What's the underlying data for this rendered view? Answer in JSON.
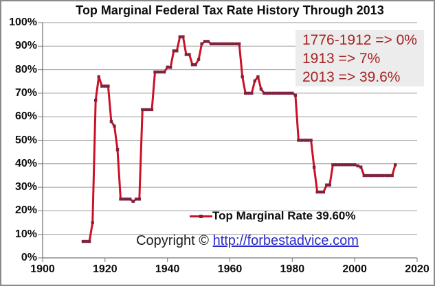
{
  "title": "Top Marginal Federal Tax Rate History Through 2013",
  "annotation": {
    "lines": [
      "1776-1912 => 0%",
      "1913 => 7%",
      "2013 => 39.6%"
    ]
  },
  "legend": {
    "label": "Top Marginal Rate 39.60%"
  },
  "copyright": {
    "prefix": "Copyright © ",
    "link": "http://forbestadvice.com"
  },
  "colors": {
    "line": "#cc1126",
    "marker": "#7d2340",
    "grid": "#989898",
    "axis": "#767676",
    "annotation_bg": "#ececec",
    "annotation_text": "#a62323",
    "link": "#2a2ac8"
  },
  "chart_data": {
    "type": "line",
    "title": "Top Marginal Federal Tax Rate History Through 2013",
    "xlabel": "",
    "ylabel": "",
    "xlim": [
      1900,
      2020
    ],
    "ylim": [
      0,
      100
    ],
    "x_ticks": [
      1900,
      1920,
      1940,
      1960,
      1980,
      2000,
      2020
    ],
    "y_ticks": [
      0,
      10,
      20,
      30,
      40,
      50,
      60,
      70,
      80,
      90,
      100
    ],
    "y_tick_suffix": "%",
    "grid": "horizontal",
    "legend_position": "inside-bottom-center",
    "series": [
      {
        "name": "Top Marginal Rate 39.60%",
        "x": [
          1913,
          1914,
          1915,
          1916,
          1917,
          1918,
          1919,
          1920,
          1921,
          1922,
          1923,
          1924,
          1925,
          1926,
          1927,
          1928,
          1929,
          1930,
          1931,
          1932,
          1933,
          1934,
          1935,
          1936,
          1937,
          1938,
          1939,
          1940,
          1941,
          1942,
          1943,
          1944,
          1945,
          1946,
          1947,
          1948,
          1949,
          1950,
          1951,
          1952,
          1953,
          1954,
          1955,
          1956,
          1957,
          1958,
          1959,
          1960,
          1961,
          1962,
          1963,
          1964,
          1965,
          1966,
          1967,
          1968,
          1969,
          1970,
          1971,
          1972,
          1973,
          1974,
          1975,
          1976,
          1977,
          1978,
          1979,
          1980,
          1981,
          1982,
          1983,
          1984,
          1985,
          1986,
          1987,
          1988,
          1989,
          1990,
          1991,
          1992,
          1993,
          1994,
          1995,
          1996,
          1997,
          1998,
          1999,
          2000,
          2001,
          2002,
          2003,
          2004,
          2005,
          2006,
          2007,
          2008,
          2009,
          2010,
          2011,
          2012,
          2013
        ],
        "values": [
          7,
          7,
          7,
          15,
          67,
          77,
          73,
          73,
          73,
          58,
          56,
          46,
          25,
          25,
          25,
          25,
          24,
          25,
          25,
          63,
          63,
          63,
          63,
          79,
          79,
          79,
          79,
          81.1,
          81,
          88,
          88,
          94,
          94,
          86.45,
          86.45,
          82.13,
          82.13,
          84.36,
          91,
          92,
          92,
          91,
          91,
          91,
          91,
          91,
          91,
          91,
          91,
          91,
          91,
          77,
          70,
          70,
          70,
          75.25,
          77,
          71.75,
          70,
          70,
          70,
          70,
          70,
          70,
          70,
          70,
          70,
          70,
          69.13,
          50,
          50,
          50,
          50,
          50,
          38.5,
          28,
          28,
          28,
          31,
          31,
          39.6,
          39.6,
          39.6,
          39.6,
          39.6,
          39.6,
          39.6,
          39.6,
          39.1,
          38.6,
          35,
          35,
          35,
          35,
          35,
          35,
          35,
          35,
          35,
          35,
          39.6
        ]
      }
    ]
  }
}
